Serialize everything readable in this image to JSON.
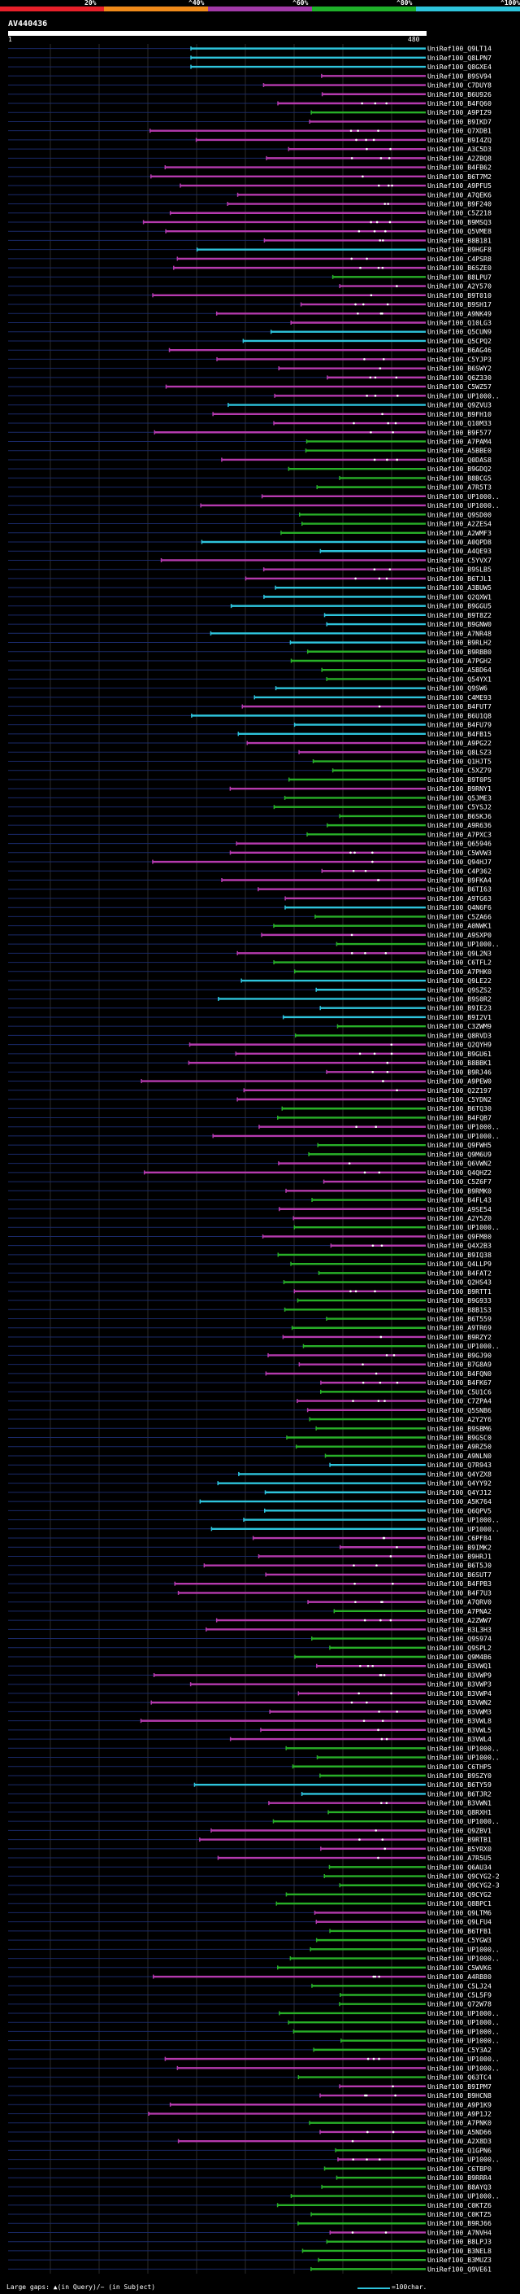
{
  "legend": [
    {
      "label": "20%",
      "color": "#e8202a"
    },
    {
      "label": "^40%",
      "color": "#ef8a1a"
    },
    {
      "label": "^60%",
      "color": "#a23aa8"
    },
    {
      "label": "^80%",
      "color": "#1fb02a"
    },
    {
      "label": "^100%",
      "color": "#2ec4dc"
    }
  ],
  "query_id": "AV440436",
  "scale": {
    "start": "1",
    "end": "480"
  },
  "footer": {
    "gaps_label": "Large gaps: ▲(in Query)/~ (in Subject)",
    "unit_label": "=100char."
  },
  "colors": {
    "cyan": "#2ec4dc",
    "magenta": "#b53aae",
    "green": "#28b028",
    "dot": "#ffffff",
    "row_line": "#1a2a6a"
  },
  "hits": [
    {
      "id": "UniRef100_Q9LT14",
      "c": "cyan"
    },
    {
      "id": "UniRef100_Q8LPN7",
      "c": "cyan"
    },
    {
      "id": "UniRef100_Q8GXE4",
      "c": "cyan"
    },
    {
      "id": "UniRef100_B9SV94",
      "c": "magenta"
    },
    {
      "id": "UniRef100_C7DUY8",
      "c": "magenta"
    },
    {
      "id": "UniRef100_B6U926",
      "c": "magenta"
    },
    {
      "id": "UniRef100_B4FQ60",
      "c": "magenta"
    },
    {
      "id": "UniRef100_A9PIZ9",
      "c": "green"
    },
    {
      "id": "UniRef100_B9IKD7",
      "c": "magenta"
    },
    {
      "id": "UniRef100_Q7XDB1",
      "c": "magenta"
    },
    {
      "id": "UniRef100_B9I4ZQ",
      "c": "magenta"
    },
    {
      "id": "UniRef100_A3C5D3",
      "c": "magenta"
    },
    {
      "id": "UniRef100_A2ZBQ8",
      "c": "magenta"
    },
    {
      "id": "UniRef100_B4FB62",
      "c": "magenta"
    },
    {
      "id": "UniRef100_B6T7M2",
      "c": "magenta"
    },
    {
      "id": "UniRef100_A9PFU5",
      "c": "magenta"
    },
    {
      "id": "UniRef100_A7QEK6",
      "c": "magenta"
    },
    {
      "id": "UniRef100_B9F240",
      "c": "magenta"
    },
    {
      "id": "UniRef100_C5Z218",
      "c": "magenta"
    },
    {
      "id": "UniRef100_B9MSQ3",
      "c": "magenta"
    },
    {
      "id": "UniRef100_Q5VME8",
      "c": "magenta"
    },
    {
      "id": "UniRef100_B8B181",
      "c": "magenta"
    },
    {
      "id": "UniRef100_B9HGF8",
      "c": "cyan"
    },
    {
      "id": "UniRef100_C4PSR8",
      "c": "magenta"
    },
    {
      "id": "UniRef100_B6SZE0",
      "c": "magenta"
    },
    {
      "id": "UniRef100_B8LPU7",
      "c": "green"
    },
    {
      "id": "UniRef100_A2Y570",
      "c": "magenta"
    },
    {
      "id": "UniRef100_B9T010",
      "c": "magenta"
    },
    {
      "id": "UniRef100_B9SH17",
      "c": "magenta"
    },
    {
      "id": "UniRef100_A9NK49",
      "c": "magenta"
    },
    {
      "id": "UniRef100_Q10LG3",
      "c": "magenta"
    },
    {
      "id": "UniRef100_Q5CUN9",
      "c": "cyan"
    },
    {
      "id": "UniRef100_Q5CPQ2",
      "c": "cyan"
    },
    {
      "id": "UniRef100_B6AG46",
      "c": "magenta"
    },
    {
      "id": "UniRef100_C5YJP3",
      "c": "magenta"
    },
    {
      "id": "UniRef100_B6SWY2",
      "c": "magenta"
    },
    {
      "id": "UniRef100_Q6Z330",
      "c": "magenta"
    },
    {
      "id": "UniRef100_C5WZ57",
      "c": "magenta"
    },
    {
      "id": "UniRef100_UP1000..",
      "c": "magenta"
    },
    {
      "id": "UniRef100_Q9ZVU3",
      "c": "cyan"
    },
    {
      "id": "UniRef100_B9FH10",
      "c": "magenta"
    },
    {
      "id": "UniRef100_Q10M33",
      "c": "magenta"
    },
    {
      "id": "UniRef100_B9F577",
      "c": "magenta"
    },
    {
      "id": "UniRef100_A7PAM4",
      "c": "green"
    },
    {
      "id": "UniRef100_A5BBE0",
      "c": "green"
    },
    {
      "id": "UniRef100_Q0DAS8",
      "c": "magenta"
    },
    {
      "id": "UniRef100_B9GDQ2",
      "c": "green"
    },
    {
      "id": "UniRef100_B8BCG5",
      "c": "green"
    },
    {
      "id": "UniRef100_A7R5T3",
      "c": "green"
    },
    {
      "id": "UniRef100_UP1000..",
      "c": "magenta"
    },
    {
      "id": "UniRef100_UP1000..",
      "c": "magenta"
    },
    {
      "id": "UniRef100_Q9SD00",
      "c": "green"
    },
    {
      "id": "UniRef100_A2ZES4",
      "c": "green"
    },
    {
      "id": "UniRef100_A2WMF3",
      "c": "green"
    },
    {
      "id": "UniRef100_A0QPD8",
      "c": "cyan"
    },
    {
      "id": "UniRef100_A4QE93",
      "c": "cyan"
    },
    {
      "id": "UniRef100_C5YVX7",
      "c": "magenta"
    },
    {
      "id": "UniRef100_B9SLB5",
      "c": "magenta"
    },
    {
      "id": "UniRef100_B6TJL1",
      "c": "magenta"
    },
    {
      "id": "UniRef100_A3BUW5",
      "c": "cyan"
    },
    {
      "id": "UniRef100_Q2QXW1",
      "c": "cyan"
    },
    {
      "id": "UniRef100_B9GGU5",
      "c": "cyan"
    },
    {
      "id": "UniRef100_B9T8Z2",
      "c": "cyan"
    },
    {
      "id": "UniRef100_B9GNW0",
      "c": "cyan"
    },
    {
      "id": "UniRef100_A7NR48",
      "c": "cyan"
    },
    {
      "id": "UniRef100_B9RLH2",
      "c": "cyan"
    },
    {
      "id": "UniRef100_B9RBB0",
      "c": "green"
    },
    {
      "id": "UniRef100_A7PGH2",
      "c": "green"
    },
    {
      "id": "UniRef100_A5BD64",
      "c": "green"
    },
    {
      "id": "UniRef100_Q54YX1",
      "c": "green"
    },
    {
      "id": "UniRef100_Q9SW6",
      "c": "cyan"
    },
    {
      "id": "UniRef100_C4ME93",
      "c": "cyan"
    },
    {
      "id": "UniRef100_B4FUT7",
      "c": "magenta"
    },
    {
      "id": "UniRef100_B6U1Q8",
      "c": "cyan"
    },
    {
      "id": "UniRef100_B4FU79",
      "c": "cyan"
    },
    {
      "id": "UniRef100_B4FB15",
      "c": "cyan"
    },
    {
      "id": "UniRef100_A9PG22",
      "c": "magenta"
    },
    {
      "id": "UniRef100_Q8LSZ3",
      "c": "magenta"
    },
    {
      "id": "UniRef100_Q1HJT5",
      "c": "green"
    },
    {
      "id": "UniRef100_C5XZ79",
      "c": "green"
    },
    {
      "id": "UniRef100_B9T0P5",
      "c": "green"
    },
    {
      "id": "UniRef100_B9RNY1",
      "c": "magenta"
    },
    {
      "id": "UniRef100_Q5JME3",
      "c": "green"
    },
    {
      "id": "UniRef100_C5YSJ2",
      "c": "green"
    },
    {
      "id": "UniRef100_B6SKJ6",
      "c": "green"
    },
    {
      "id": "UniRef100_A9R636",
      "c": "green"
    },
    {
      "id": "UniRef100_A7PXC3",
      "c": "green"
    },
    {
      "id": "UniRef100_Q65946",
      "c": "magenta"
    },
    {
      "id": "UniRef100_C5WVW3",
      "c": "magenta"
    },
    {
      "id": "UniRef100_Q94HJ7",
      "c": "magenta"
    },
    {
      "id": "UniRef100_C4P362",
      "c": "magenta"
    },
    {
      "id": "UniRef100_B9FKA4",
      "c": "magenta"
    },
    {
      "id": "UniRef100_B6TI63",
      "c": "magenta"
    },
    {
      "id": "UniRef100_A9TG63",
      "c": "magenta"
    },
    {
      "id": "UniRef100_Q4N6F6",
      "c": "cyan"
    },
    {
      "id": "UniRef100_C5ZA66",
      "c": "green"
    },
    {
      "id": "UniRef100_A0NWK1",
      "c": "green"
    },
    {
      "id": "UniRef100_A9SXP0",
      "c": "magenta"
    },
    {
      "id": "UniRef100_UP1000..",
      "c": "green"
    },
    {
      "id": "UniRef100_Q9L2N3",
      "c": "magenta"
    },
    {
      "id": "UniRef100_C6TFL2",
      "c": "green"
    },
    {
      "id": "UniRef100_A7PHK0",
      "c": "green"
    },
    {
      "id": "UniRef100_Q9LE22",
      "c": "cyan"
    },
    {
      "id": "UniRef100_Q9SZS2",
      "c": "cyan"
    },
    {
      "id": "UniRef100_B9S0R2",
      "c": "cyan"
    },
    {
      "id": "UniRef100_B9IE23",
      "c": "cyan"
    },
    {
      "id": "UniRef100_B9I2V1",
      "c": "cyan"
    },
    {
      "id": "UniRef100_C3ZWM9",
      "c": "green"
    },
    {
      "id": "UniRef100_Q8RVD3",
      "c": "green"
    },
    {
      "id": "UniRef100_Q2QYH9",
      "c": "magenta"
    },
    {
      "id": "UniRef100_B9GU61",
      "c": "magenta"
    },
    {
      "id": "UniRef100_B8BBK1",
      "c": "magenta"
    },
    {
      "id": "UniRef100_B9RJ46",
      "c": "magenta"
    },
    {
      "id": "UniRef100_A9PEW0",
      "c": "magenta"
    },
    {
      "id": "UniRef100_Q2Z197",
      "c": "magenta"
    },
    {
      "id": "UniRef100_C5YDN2",
      "c": "magenta"
    },
    {
      "id": "UniRef100_B6TQ30",
      "c": "green"
    },
    {
      "id": "UniRef100_B4FQB7",
      "c": "green"
    },
    {
      "id": "UniRef100_UP1000..",
      "c": "magenta"
    },
    {
      "id": "UniRef100_UP1000..",
      "c": "magenta"
    },
    {
      "id": "UniRef100_Q9FWH5",
      "c": "green"
    },
    {
      "id": "UniRef100_Q9M6U9",
      "c": "green"
    },
    {
      "id": "UniRef100_Q6VWN2",
      "c": "magenta"
    },
    {
      "id": "UniRef100_Q4QHZ2",
      "c": "magenta"
    },
    {
      "id": "UniRef100_C5Z6F7",
      "c": "magenta"
    },
    {
      "id": "UniRef100_B9RMK0",
      "c": "magenta"
    },
    {
      "id": "UniRef100_B4FL43",
      "c": "green"
    },
    {
      "id": "UniRef100_A9SE54",
      "c": "magenta"
    },
    {
      "id": "UniRef100_A2Y5Z0",
      "c": "magenta"
    },
    {
      "id": "UniRef100_UP1000..",
      "c": "green"
    },
    {
      "id": "UniRef100_Q9FM80",
      "c": "magenta"
    },
    {
      "id": "UniRef100_Q4X2B3",
      "c": "magenta"
    },
    {
      "id": "UniRef100_B9IQ38",
      "c": "green"
    },
    {
      "id": "UniRef100_Q4LLP9",
      "c": "green"
    },
    {
      "id": "UniRef100_B4FAT2",
      "c": "green"
    },
    {
      "id": "UniRef100_Q2HS43",
      "c": "green"
    },
    {
      "id": "UniRef100_B9RTT1",
      "c": "magenta"
    },
    {
      "id": "UniRef100_B9G933",
      "c": "green"
    },
    {
      "id": "UniRef100_B8B1S3",
      "c": "green"
    },
    {
      "id": "UniRef100_B6T559",
      "c": "green"
    },
    {
      "id": "UniRef100_A9TR69",
      "c": "green"
    },
    {
      "id": "UniRef100_B9RZY2",
      "c": "magenta"
    },
    {
      "id": "UniRef100_UP1000..",
      "c": "green"
    },
    {
      "id": "UniRef100_B9GJ90",
      "c": "magenta"
    },
    {
      "id": "UniRef100_B7G8A9",
      "c": "magenta"
    },
    {
      "id": "UniRef100_B4FQN0",
      "c": "magenta"
    },
    {
      "id": "UniRef100_B4FK67",
      "c": "magenta"
    },
    {
      "id": "UniRef100_C5U1C6",
      "c": "green"
    },
    {
      "id": "UniRef100_C7ZPA4",
      "c": "magenta"
    },
    {
      "id": "UniRef100_Q5SNB6",
      "c": "magenta"
    },
    {
      "id": "UniRef100_A2Y2Y6",
      "c": "green"
    },
    {
      "id": "UniRef100_B9SBM6",
      "c": "green"
    },
    {
      "id": "UniRef100_B9GSC0",
      "c": "green"
    },
    {
      "id": "UniRef100_A9RZ50",
      "c": "green"
    },
    {
      "id": "UniRef100_A9NLN0",
      "c": "green"
    },
    {
      "id": "UniRef100_Q7R943",
      "c": "cyan"
    },
    {
      "id": "UniRef100_Q4YZX8",
      "c": "cyan"
    },
    {
      "id": "UniRef100_Q4YY92",
      "c": "cyan"
    },
    {
      "id": "UniRef100_Q4YJ12",
      "c": "cyan"
    },
    {
      "id": "UniRef100_A5K764",
      "c": "cyan"
    },
    {
      "id": "UniRef100_Q6QPV5",
      "c": "cyan"
    },
    {
      "id": "UniRef100_UP1000..",
      "c": "cyan"
    },
    {
      "id": "UniRef100_UP1000..",
      "c": "cyan"
    },
    {
      "id": "UniRef100_C6PF84",
      "c": "magenta"
    },
    {
      "id": "UniRef100_B9IMK2",
      "c": "magenta"
    },
    {
      "id": "UniRef100_B9HRJ1",
      "c": "magenta"
    },
    {
      "id": "UniRef100_B6T5J0",
      "c": "magenta"
    },
    {
      "id": "UniRef100_B6SUT7",
      "c": "magenta"
    },
    {
      "id": "UniRef100_B4FPB3",
      "c": "magenta"
    },
    {
      "id": "UniRef100_B4F7U3",
      "c": "magenta"
    },
    {
      "id": "UniRef100_A7QRV0",
      "c": "magenta"
    },
    {
      "id": "UniRef100_A7PNA2",
      "c": "green"
    },
    {
      "id": "UniRef100_A2ZWW7",
      "c": "magenta"
    },
    {
      "id": "UniRef100_B3L3H3",
      "c": "magenta"
    },
    {
      "id": "UniRef100_Q9S974",
      "c": "green"
    },
    {
      "id": "UniRef100_Q9SPL2",
      "c": "green"
    },
    {
      "id": "UniRef100_Q9M4B6",
      "c": "green"
    },
    {
      "id": "UniRef100_B3VWQ1",
      "c": "magenta"
    },
    {
      "id": "UniRef100_B3VWP9",
      "c": "magenta"
    },
    {
      "id": "UniRef100_B3VWP3",
      "c": "magenta"
    },
    {
      "id": "UniRef100_B3VWP4",
      "c": "magenta"
    },
    {
      "id": "UniRef100_B3VWN2",
      "c": "magenta"
    },
    {
      "id": "UniRef100_B3VWM3",
      "c": "magenta"
    },
    {
      "id": "UniRef100_B3VWL8",
      "c": "magenta"
    },
    {
      "id": "UniRef100_B3VWL5",
      "c": "magenta"
    },
    {
      "id": "UniRef100_B3VWL4",
      "c": "magenta"
    },
    {
      "id": "UniRef100_UP1000..",
      "c": "green"
    },
    {
      "id": "UniRef100_UP1000..",
      "c": "green"
    },
    {
      "id": "UniRef100_C6THP5",
      "c": "green"
    },
    {
      "id": "UniRef100_B9SZY0",
      "c": "green"
    },
    {
      "id": "UniRef100_B6TY59",
      "c": "cyan"
    },
    {
      "id": "UniRef100_B6TJR2",
      "c": "cyan"
    },
    {
      "id": "UniRef100_B3VWN1",
      "c": "magenta"
    },
    {
      "id": "UniRef100_Q8RXH1",
      "c": "green"
    },
    {
      "id": "UniRef100_UP1000..",
      "c": "green"
    },
    {
      "id": "UniRef100_Q9ZBV1",
      "c": "magenta"
    },
    {
      "id": "UniRef100_B9RTB1",
      "c": "magenta"
    },
    {
      "id": "UniRef100_B5YRX0",
      "c": "magenta"
    },
    {
      "id": "UniRef100_A7R5U5",
      "c": "magenta"
    },
    {
      "id": "UniRef100_Q6AU34",
      "c": "green"
    },
    {
      "id": "UniRef100_Q9CYG2-2",
      "c": "green"
    },
    {
      "id": "UniRef100_Q9CYG2-3",
      "c": "green"
    },
    {
      "id": "UniRef100_Q9CYG2",
      "c": "green"
    },
    {
      "id": "UniRef100_Q8BPC1",
      "c": "green"
    },
    {
      "id": "UniRef100_Q9LTM6",
      "c": "magenta"
    },
    {
      "id": "UniRef100_Q9LFU4",
      "c": "magenta"
    },
    {
      "id": "UniRef100_B6TFB1",
      "c": "green"
    },
    {
      "id": "UniRef100_C5YGW3",
      "c": "green"
    },
    {
      "id": "UniRef100_UP1000..",
      "c": "green"
    },
    {
      "id": "UniRef100_UP1000..",
      "c": "green"
    },
    {
      "id": "UniRef100_C5WVK6",
      "c": "green"
    },
    {
      "id": "UniRef100_A4RB80",
      "c": "magenta"
    },
    {
      "id": "UniRef100_C5LJ24",
      "c": "green"
    },
    {
      "id": "UniRef100_C5L5F9",
      "c": "green"
    },
    {
      "id": "UniRef100_Q72W78",
      "c": "green"
    },
    {
      "id": "UniRef100_UP1000..",
      "c": "green"
    },
    {
      "id": "UniRef100_UP1000..",
      "c": "green"
    },
    {
      "id": "UniRef100_UP1000..",
      "c": "green"
    },
    {
      "id": "UniRef100_UP1000..",
      "c": "green"
    },
    {
      "id": "UniRef100_C5Y3A2",
      "c": "green"
    },
    {
      "id": "UniRef100_UP1000..",
      "c": "magenta"
    },
    {
      "id": "UniRef100_UP1000..",
      "c": "magenta"
    },
    {
      "id": "UniRef100_Q63TC4",
      "c": "green"
    },
    {
      "id": "UniRef100_B9IPM7",
      "c": "magenta"
    },
    {
      "id": "UniRef100_B9HCN8",
      "c": "magenta"
    },
    {
      "id": "UniRef100_A9P1K9",
      "c": "magenta"
    },
    {
      "id": "UniRef100_A9P1J2",
      "c": "magenta"
    },
    {
      "id": "UniRef100_A7PNK0",
      "c": "green"
    },
    {
      "id": "UniRef100_A5ND66",
      "c": "magenta"
    },
    {
      "id": "UniRef100_A2X8D3",
      "c": "magenta"
    },
    {
      "id": "UniRef100_Q1GPN6",
      "c": "green"
    },
    {
      "id": "UniRef100_UP1000..",
      "c": "magenta"
    },
    {
      "id": "UniRef100_C6TBP0",
      "c": "green"
    },
    {
      "id": "UniRef100_B9RRR4",
      "c": "green"
    },
    {
      "id": "UniRef100_B8AYQ3",
      "c": "green"
    },
    {
      "id": "UniRef100_UP1000..",
      "c": "green"
    },
    {
      "id": "UniRef100_C0KTZ6",
      "c": "green"
    },
    {
      "id": "UniRef100_C0KTZ5",
      "c": "green"
    },
    {
      "id": "UniRef100_B9RJ66",
      "c": "green"
    },
    {
      "id": "UniRef100_A7NVH4",
      "c": "magenta"
    },
    {
      "id": "UniRef100_B8LPJ3",
      "c": "green"
    },
    {
      "id": "UniRef100_B3NEL8",
      "c": "green"
    },
    {
      "id": "UniRef100_B3MUZ3",
      "c": "green"
    },
    {
      "id": "UniRef100_Q9VE61",
      "c": "green"
    }
  ]
}
